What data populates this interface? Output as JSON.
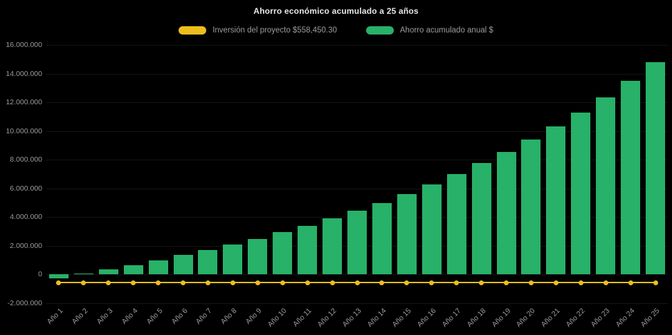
{
  "colors": {
    "background": "#000000",
    "title_text": "#e8e8e8",
    "axis_text": "#9c9c9c",
    "investment_yellow": "#ecbe1b",
    "savings_green": "#28b168"
  },
  "chart_data": {
    "type": "bar",
    "title": "Ahorro económico acumulado a 25 años",
    "categories": [
      "Año 1",
      "Año 2",
      "Año 3",
      "Año 4",
      "Año 5",
      "Año 6",
      "Año 7",
      "Año 8",
      "Año 9",
      "Año 10",
      "Año 11",
      "Año 12",
      "Año 13",
      "Año 14",
      "Año 15",
      "Año 16",
      "Año 17",
      "Año 18",
      "Año 19",
      "Año 20",
      "Año 21",
      "Año 22",
      "Año 23",
      "Año 24",
      "Año 25"
    ],
    "series": [
      {
        "name": "Inversión del proyecto $558,450.30",
        "type": "line",
        "color": "#ecbe1b",
        "constant_value": -558450.3
      },
      {
        "name": "Ahorro acumulado anual $",
        "type": "bar",
        "color": "#28b168",
        "values": [
          -250000,
          50000,
          350000,
          650000,
          1000000,
          1350000,
          1700000,
          2100000,
          2500000,
          2950000,
          3400000,
          3900000,
          4450000,
          5000000,
          5600000,
          6300000,
          7000000,
          7750000,
          8550000,
          9400000,
          10300000,
          11300000,
          12350000,
          13500000,
          14800000
        ]
      }
    ],
    "xlabel": "",
    "ylabel": "",
    "ylim": [
      -2000000,
      16000000
    ],
    "y_tick_step": 2000000,
    "y_ticks": [
      "16.000.000",
      "14.000.000",
      "12.000.000",
      "10.000.000",
      "8.000.000",
      "6.000.000",
      "4.000.000",
      "2.000.000",
      "0",
      "-2.000.000"
    ],
    "grid": false,
    "legend_position": "top",
    "x_labels_rotated": true
  }
}
